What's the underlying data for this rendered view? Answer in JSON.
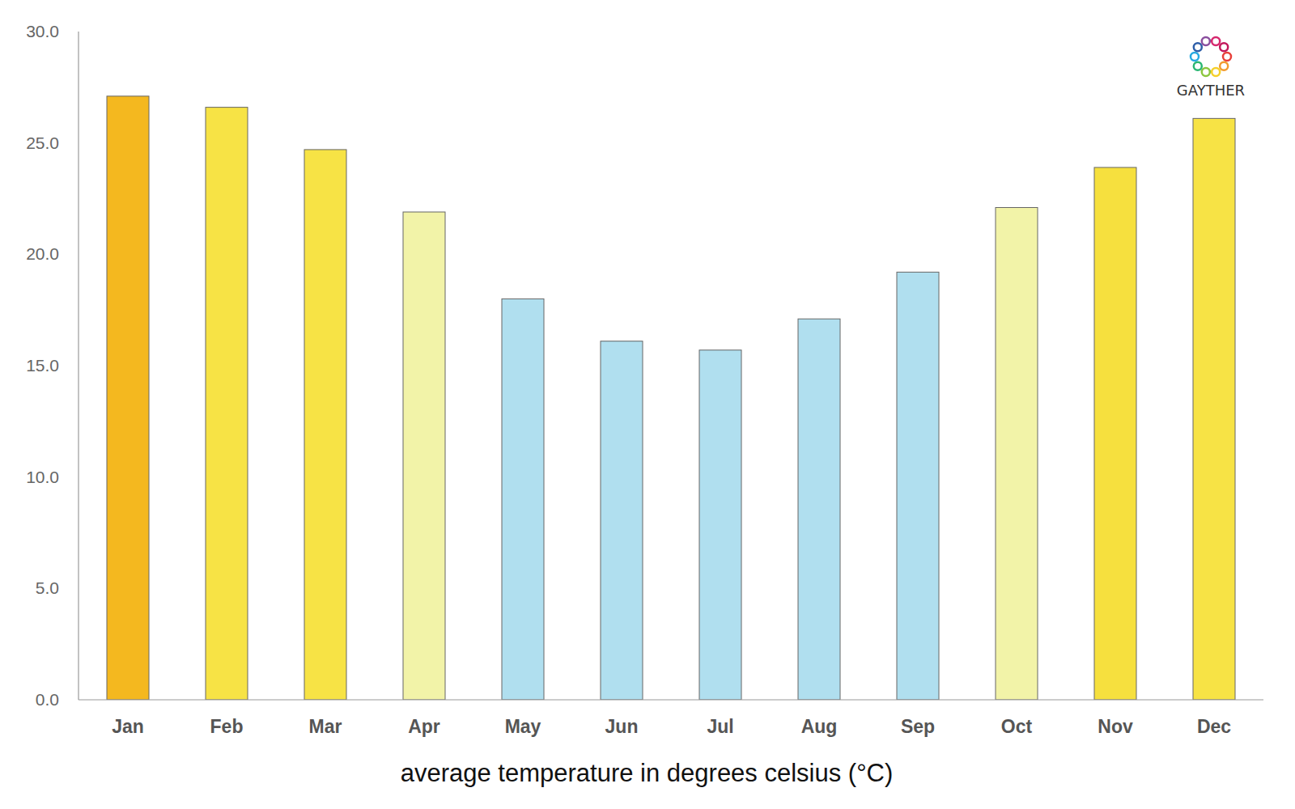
{
  "chart_data": {
    "type": "bar",
    "x_label": "average temperature in degrees celsius (°C)",
    "categories": [
      "Jan",
      "Feb",
      "Mar",
      "Apr",
      "May",
      "Jun",
      "Jul",
      "Aug",
      "Sep",
      "Oct",
      "Nov",
      "Dec"
    ],
    "values": [
      27.1,
      26.6,
      24.7,
      21.9,
      18.0,
      16.1,
      15.7,
      17.1,
      19.2,
      22.1,
      23.9,
      26.1
    ],
    "colors": [
      "#f4b81f",
      "#f7e345",
      "#f7e345",
      "#f2f3a8",
      "#b0dfef",
      "#b0dfef",
      "#b0dfef",
      "#b0dfef",
      "#b0dfef",
      "#f2f3a8",
      "#f6e03e",
      "#f7e345"
    ],
    "ylim": [
      0,
      30
    ],
    "yticks": [
      {
        "value": 0,
        "label": "0.0"
      },
      {
        "value": 5,
        "label": "5.0"
      },
      {
        "value": 10,
        "label": "10.0"
      },
      {
        "value": 15,
        "label": "15.0"
      },
      {
        "value": 20,
        "label": "20.0"
      },
      {
        "value": 25,
        "label": "25.0"
      },
      {
        "value": 30,
        "label": "30.0"
      }
    ],
    "grid": false,
    "annotations": [
      "GAYTHER"
    ]
  }
}
